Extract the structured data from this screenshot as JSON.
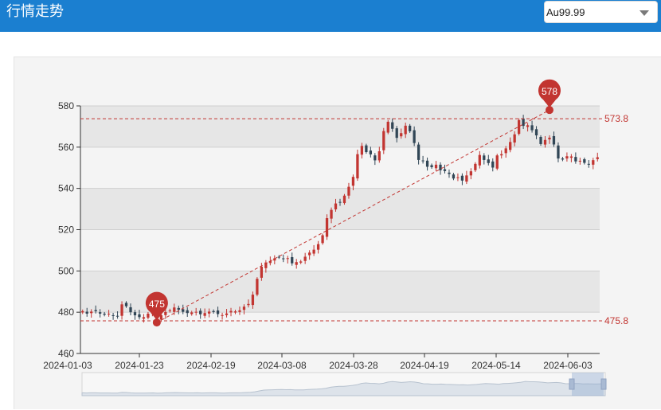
{
  "header": {
    "title": "行情走势",
    "select_value": "Au99.99"
  },
  "colors": {
    "header_bg": "#1b7fd0",
    "up": "#c23531",
    "down": "#314656",
    "band_dark": "#e6e6e6",
    "band_light": "#f4f4f4"
  },
  "chart_data": {
    "type": "candlestick",
    "x_tick_labels": [
      "2024-01-03",
      "2024-01-23",
      "2024-02-19",
      "2024-03-08",
      "2024-03-28",
      "2024-04-19",
      "2024-05-14",
      "2024-06-03"
    ],
    "y_ticks": [
      460,
      480,
      500,
      520,
      540,
      560,
      580
    ],
    "ylim": [
      460,
      580
    ],
    "markpoints": [
      {
        "label": "578",
        "value": 578,
        "date_index": 107,
        "type": "max"
      },
      {
        "label": "475",
        "value": 475,
        "date_index": 17,
        "type": "min"
      }
    ],
    "marklines": [
      {
        "label": "573.8",
        "value": 573.8
      },
      {
        "label": "475.8",
        "value": 475.8
      }
    ],
    "trend_line": {
      "from": {
        "date_index": 17,
        "value": 475
      },
      "to": {
        "date_index": 107,
        "value": 578
      }
    },
    "closes": [
      480.5,
      479.3,
      480.3,
      480.5,
      479.3,
      478.8,
      479.3,
      478.5,
      478.0,
      483.8,
      482.9,
      480.0,
      478.5,
      477.6,
      477.6,
      479.3,
      479.6,
      476.9,
      478.6,
      480.1,
      480.9,
      482.3,
      481.2,
      480.2,
      479.6,
      479.9,
      480.2,
      479.0,
      479.6,
      480.3,
      480.1,
      479.1,
      478.6,
      479.4,
      480.6,
      480.4,
      480.9,
      482.7,
      484.0,
      488.5,
      496.2,
      502.1,
      504.1,
      504.8,
      506.1,
      506.6,
      505.8,
      506.2,
      503.7,
      504.3,
      504.6,
      506.9,
      508.9,
      510.3,
      513.0,
      517.3,
      525.6,
      529.6,
      532.7,
      533.4,
      536.5,
      540.8,
      545.6,
      556.6,
      560.6,
      557.6,
      556.5,
      553.6,
      558.0,
      567.8,
      572.3,
      568.9,
      564.5,
      566.8,
      570.4,
      567.7,
      562.0,
      553.8,
      553.2,
      550.5,
      550.3,
      551.5,
      548.8,
      548.4,
      547.0,
      544.8,
      545.4,
      543.8,
      546.3,
      548.3,
      551.9,
      556.2,
      553.8,
      552.3,
      550.1,
      556.0,
      556.6,
      559.4,
      562.5,
      566.2,
      573.1,
      570.3,
      570.6,
      568.2,
      565.7,
      561.5,
      563.5,
      564.6,
      561.3,
      554.5,
      554.0,
      555.6,
      555.5,
      553.1,
      553.4,
      552.4,
      551.5,
      553.7,
      555.1
    ]
  },
  "zoom_slider": {
    "start_handle": "left-handle",
    "end_handle": "right-handle"
  }
}
